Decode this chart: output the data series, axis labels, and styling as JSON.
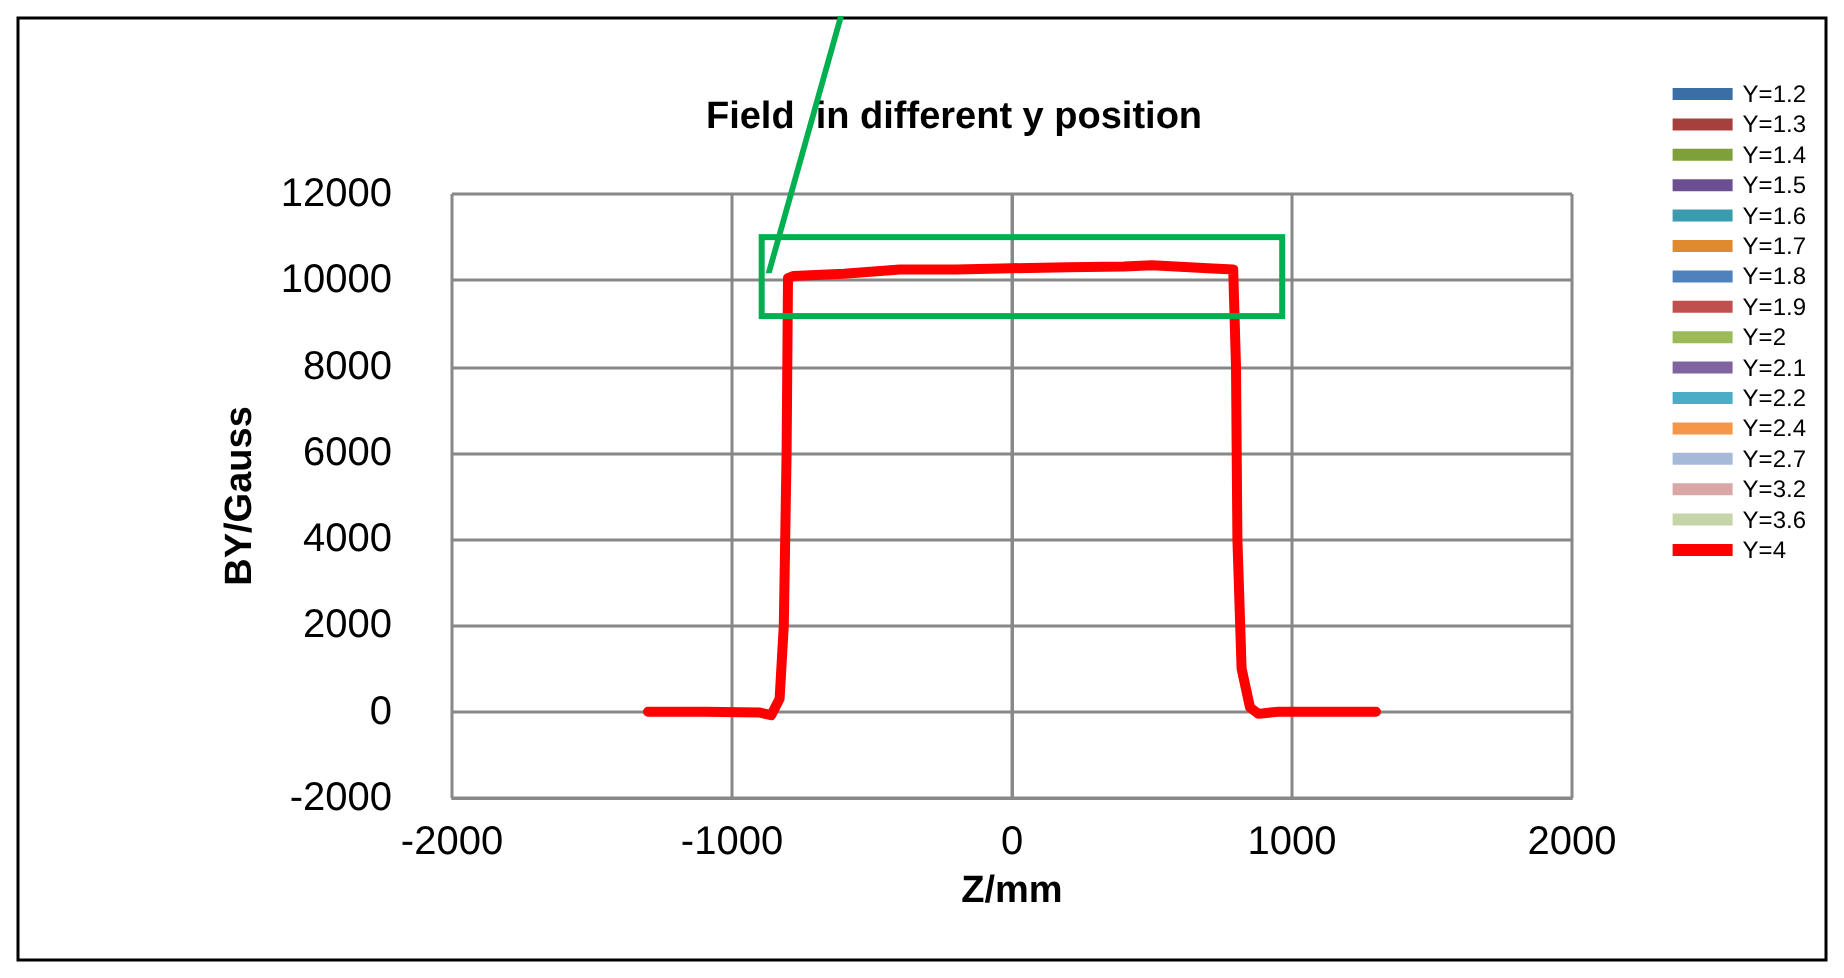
{
  "chart_data": {
    "type": "line",
    "title": "Field  in different y position",
    "xlabel": "Z/mm",
    "ylabel": "BY/Gauss",
    "xlim": [
      -2000,
      2000
    ],
    "xticks": [
      -2000,
      -1000,
      0,
      1000,
      2000
    ],
    "ylim": [
      -2000,
      12000
    ],
    "yticks": [
      -2000,
      0,
      2000,
      4000,
      6000,
      8000,
      10000,
      12000
    ],
    "grid": true,
    "legend": "right",
    "line_style": "solid",
    "marker": "none",
    "x": [
      -1300,
      -1100,
      -900,
      -860,
      -830,
      -815,
      -805,
      -800,
      -780,
      -600,
      -400,
      -200,
      0,
      200,
      400,
      500,
      700,
      790,
      800,
      805,
      820,
      850,
      880,
      950,
      1100,
      1300
    ],
    "series": [
      {
        "name": "Y=1.2",
        "color": "#3a6ea5",
        "values": [
          null,
          null,
          null,
          null,
          null,
          null,
          null,
          null,
          null,
          null,
          null,
          null,
          null,
          null,
          null,
          null,
          null,
          null,
          null,
          null,
          null,
          null,
          null,
          null,
          null,
          null
        ]
      },
      {
        "name": "Y=1.3",
        "color": "#a5403d",
        "values": [
          null,
          null,
          null,
          null,
          null,
          null,
          null,
          null,
          null,
          null,
          null,
          null,
          null,
          null,
          null,
          null,
          null,
          null,
          null,
          null,
          null,
          null,
          null,
          null,
          null,
          null
        ]
      },
      {
        "name": "Y=1.4",
        "color": "#7ea03b",
        "values": [
          null,
          null,
          null,
          null,
          null,
          null,
          null,
          null,
          null,
          null,
          null,
          null,
          null,
          null,
          null,
          null,
          null,
          null,
          null,
          null,
          null,
          null,
          null,
          null,
          null,
          null
        ]
      },
      {
        "name": "Y=1.5",
        "color": "#6b4f90",
        "values": [
          null,
          null,
          null,
          null,
          null,
          null,
          null,
          null,
          null,
          null,
          null,
          null,
          null,
          null,
          null,
          null,
          null,
          null,
          null,
          null,
          null,
          null,
          null,
          null,
          null,
          null
        ]
      },
      {
        "name": "Y=1.6",
        "color": "#3a9bb0",
        "values": [
          null,
          null,
          null,
          null,
          null,
          null,
          null,
          null,
          null,
          null,
          null,
          null,
          null,
          null,
          null,
          null,
          null,
          null,
          null,
          null,
          null,
          null,
          null,
          null,
          null,
          null
        ]
      },
      {
        "name": "Y=1.7",
        "color": "#e08a2f",
        "values": [
          null,
          null,
          null,
          null,
          null,
          null,
          null,
          null,
          null,
          null,
          null,
          null,
          null,
          null,
          null,
          null,
          null,
          null,
          null,
          null,
          null,
          null,
          null,
          null,
          null,
          null
        ]
      },
      {
        "name": "Y=1.8",
        "color": "#4f81bd",
        "values": [
          null,
          null,
          null,
          null,
          null,
          null,
          null,
          null,
          null,
          null,
          null,
          null,
          null,
          null,
          null,
          null,
          null,
          null,
          null,
          null,
          null,
          null,
          null,
          null,
          null,
          null
        ]
      },
      {
        "name": "Y=1.9",
        "color": "#c0504d",
        "values": [
          null,
          null,
          null,
          null,
          null,
          null,
          null,
          null,
          null,
          null,
          null,
          null,
          null,
          null,
          null,
          null,
          null,
          null,
          null,
          null,
          null,
          null,
          null,
          null,
          null,
          null
        ]
      },
      {
        "name": "Y=2",
        "color": "#9bbb59",
        "values": [
          null,
          null,
          null,
          null,
          null,
          null,
          null,
          null,
          null,
          null,
          null,
          null,
          null,
          null,
          null,
          null,
          null,
          null,
          null,
          null,
          null,
          null,
          null,
          null,
          null,
          null
        ]
      },
      {
        "name": "Y=2.1",
        "color": "#8064a2",
        "values": [
          null,
          null,
          null,
          null,
          null,
          null,
          null,
          null,
          null,
          null,
          null,
          null,
          null,
          null,
          null,
          null,
          null,
          null,
          null,
          null,
          null,
          null,
          null,
          null,
          null,
          null
        ]
      },
      {
        "name": "Y=2.2",
        "color": "#4bacc6",
        "values": [
          null,
          null,
          null,
          null,
          null,
          null,
          null,
          null,
          null,
          null,
          null,
          null,
          null,
          null,
          null,
          null,
          null,
          null,
          null,
          null,
          null,
          null,
          null,
          null,
          null,
          null
        ]
      },
      {
        "name": "Y=2.4",
        "color": "#f79646",
        "values": [
          null,
          null,
          null,
          null,
          null,
          null,
          null,
          null,
          null,
          null,
          null,
          null,
          null,
          null,
          null,
          null,
          null,
          null,
          null,
          null,
          null,
          null,
          null,
          null,
          null,
          null
        ]
      },
      {
        "name": "Y=2.7",
        "color": "#a7b9d9",
        "values": [
          null,
          null,
          null,
          null,
          null,
          null,
          null,
          null,
          null,
          null,
          null,
          null,
          null,
          null,
          null,
          null,
          null,
          null,
          null,
          null,
          null,
          null,
          null,
          null,
          null,
          null
        ]
      },
      {
        "name": "Y=3.2",
        "color": "#d9a7a6",
        "values": [
          null,
          null,
          null,
          null,
          null,
          null,
          null,
          null,
          null,
          null,
          null,
          null,
          null,
          null,
          null,
          null,
          null,
          null,
          null,
          null,
          null,
          null,
          null,
          null,
          null,
          null
        ]
      },
      {
        "name": "Y=3.6",
        "color": "#c6d5a8",
        "values": [
          null,
          null,
          null,
          null,
          null,
          null,
          null,
          null,
          null,
          null,
          null,
          null,
          null,
          null,
          null,
          null,
          null,
          null,
          null,
          null,
          null,
          null,
          null,
          null,
          null,
          null
        ]
      },
      {
        "name": "Y=4",
        "color": "#ff0000",
        "values": [
          0,
          0,
          -20,
          -80,
          300,
          2000,
          6000,
          10050,
          10100,
          10150,
          10250,
          10250,
          10280,
          10300,
          10320,
          10350,
          10280,
          10250,
          8000,
          4000,
          1000,
          100,
          -50,
          0,
          0,
          0
        ]
      }
    ]
  }
}
